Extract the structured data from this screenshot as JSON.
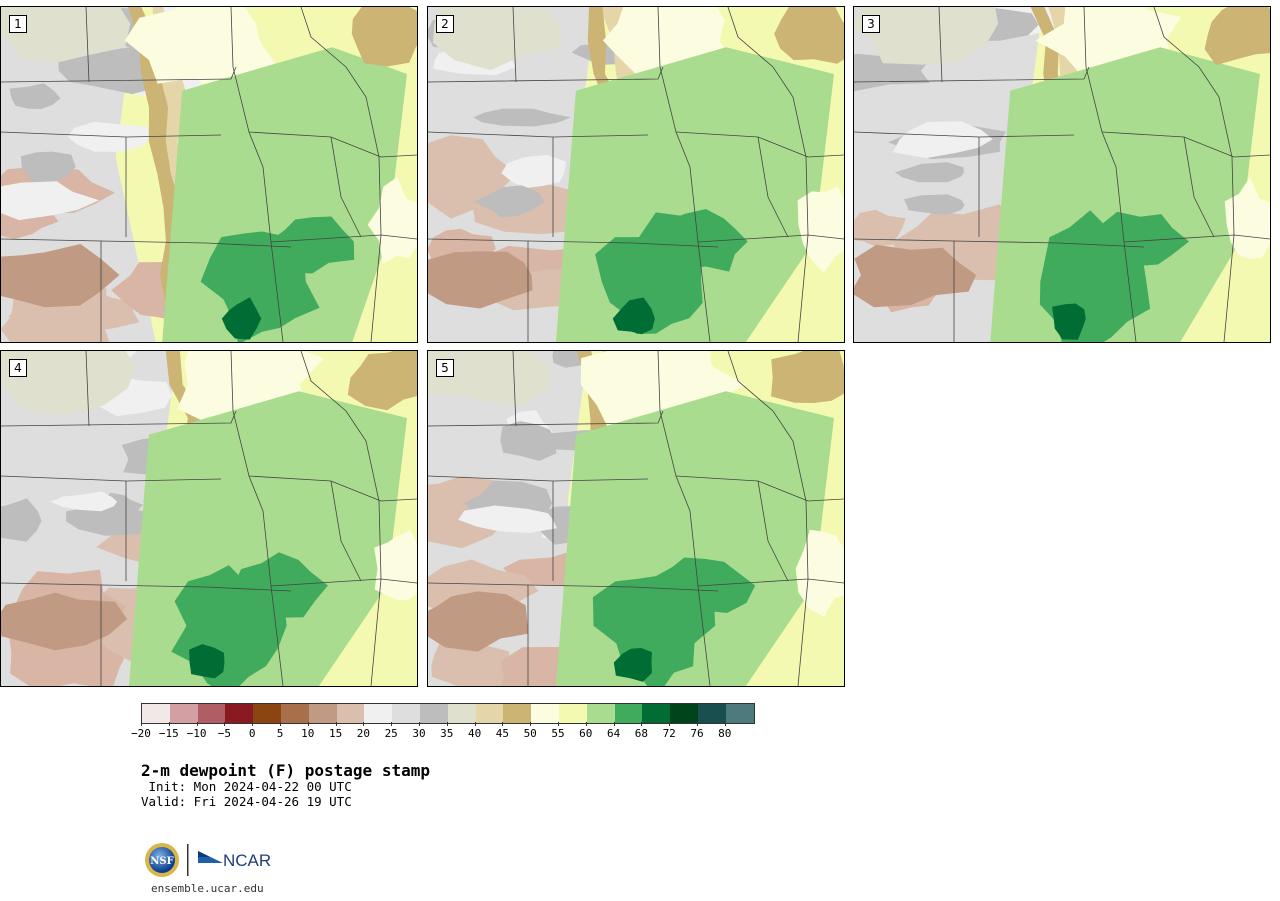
{
  "panels": [
    {
      "label": "1",
      "seed": 11,
      "dry_edge": 0.42,
      "moist_core": 0.7
    },
    {
      "label": "2",
      "seed": 23,
      "dry_edge": 0.5,
      "moist_core": 0.62
    },
    {
      "label": "3",
      "seed": 37,
      "dry_edge": 0.55,
      "moist_core": 0.64
    },
    {
      "label": "4",
      "seed": 49,
      "dry_edge": 0.52,
      "moist_core": 0.62
    },
    {
      "label": "5",
      "seed": 61,
      "dry_edge": 0.48,
      "moist_core": 0.62
    }
  ],
  "colorbar": {
    "colors": [
      "#f3e8e8",
      "#d39fa3",
      "#b05d63",
      "#8a1a22",
      "#8a4510",
      "#a8704a",
      "#c09a82",
      "#dbbfae",
      "#f0f0f0",
      "#dedede",
      "#bdbdbd",
      "#e0e0cf",
      "#e5d6aa",
      "#cbb474",
      "#fcfce0",
      "#f4f9b2",
      "#a9dc8e",
      "#41ab5d",
      "#006d35",
      "#00441b",
      "#1a4f4f",
      "#4d7a7d"
    ],
    "ticks": [
      "−20",
      "−15",
      "−10",
      "−5",
      "0",
      "5",
      "10",
      "15",
      "20",
      "25",
      "30",
      "35",
      "40",
      "45",
      "50",
      "55",
      "60",
      "64",
      "68",
      "72",
      "76",
      "80"
    ]
  },
  "title": "2-m dewpoint (F) postage stamp",
  "init_line": " Init: Mon 2024-04-22 00 UTC",
  "valid_line": "Valid: Fri 2024-04-26 19 UTC",
  "logos": {
    "nsf": "NSF",
    "ncar": "NCAR"
  },
  "url": "ensemble.ucar.edu"
}
